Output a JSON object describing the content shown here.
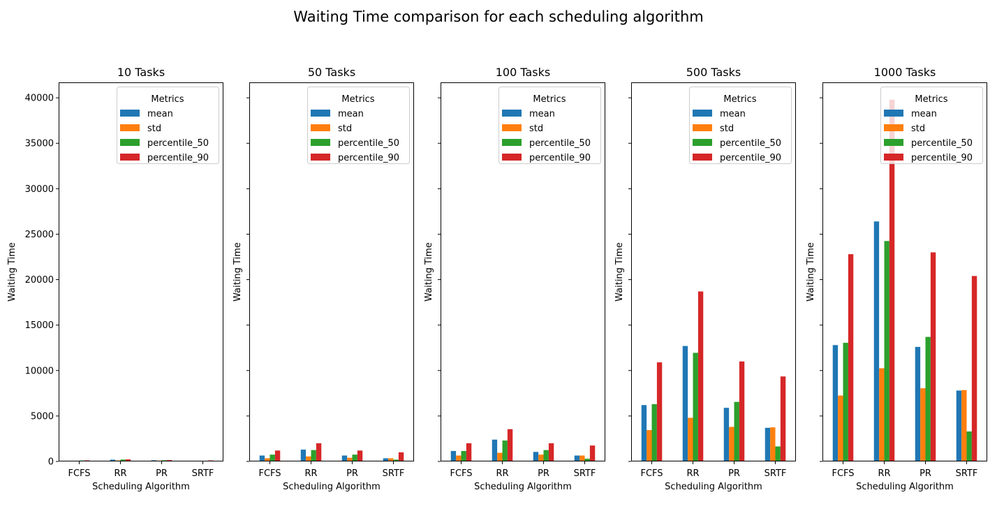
{
  "chart_data": {
    "type": "bar",
    "title": "Waiting Time comparison for each scheduling algorithm",
    "shared_y": true,
    "ylim": [
      0,
      41700
    ],
    "yticks": [
      0,
      5000,
      10000,
      15000,
      20000,
      25000,
      30000,
      35000,
      40000
    ],
    "ytick_labels": [
      "0",
      "5000",
      "10000",
      "15000",
      "20000",
      "25000",
      "30000",
      "35000",
      "40000"
    ],
    "xlabel": "Scheduling Algorithm",
    "ylabel": "Waiting Time",
    "categories": [
      "FCFS",
      "RR",
      "PR",
      "SRTF"
    ],
    "legend": {
      "title": "Metrics",
      "placement": "upper right",
      "entries": [
        "mean",
        "std",
        "percentile_50",
        "percentile_90"
      ]
    },
    "colors": [
      "#1f77b4",
      "#ff7f0e",
      "#2ca02c",
      "#d62728"
    ],
    "panels": [
      {
        "title": "10 Tasks",
        "series": [
          {
            "name": "mean",
            "values": [
              80,
              200,
              130,
              60
            ]
          },
          {
            "name": "std",
            "values": [
              60,
              110,
              90,
              50
            ]
          },
          {
            "name": "percentile_50",
            "values": [
              100,
              210,
              130,
              70
            ]
          },
          {
            "name": "percentile_90",
            "values": [
              120,
              230,
              150,
              110
            ]
          }
        ]
      },
      {
        "title": "50 Tasks",
        "series": [
          {
            "name": "mean",
            "values": [
              650,
              1300,
              650,
              350
            ]
          },
          {
            "name": "std",
            "values": [
              350,
              550,
              400,
              350
            ]
          },
          {
            "name": "percentile_50",
            "values": [
              750,
              1250,
              750,
              200
            ]
          },
          {
            "name": "percentile_90",
            "values": [
              1200,
              2000,
              1200,
              1000
            ]
          }
        ]
      },
      {
        "title": "100 Tasks",
        "series": [
          {
            "name": "mean",
            "values": [
              1150,
              2400,
              1050,
              650
            ]
          },
          {
            "name": "std",
            "values": [
              650,
              950,
              750,
              650
            ]
          },
          {
            "name": "percentile_50",
            "values": [
              1150,
              2300,
              1250,
              300
            ]
          },
          {
            "name": "percentile_90",
            "values": [
              2000,
              3550,
              2000,
              1750
            ]
          }
        ]
      },
      {
        "title": "500 Tasks",
        "series": [
          {
            "name": "mean",
            "values": [
              6200,
              12700,
              5900,
              3700
            ]
          },
          {
            "name": "std",
            "values": [
              3450,
              4800,
              3800,
              3750
            ]
          },
          {
            "name": "percentile_50",
            "values": [
              6300,
              11950,
              6550,
              1650
            ]
          },
          {
            "name": "percentile_90",
            "values": [
              10900,
              18700,
              11000,
              9350
            ]
          }
        ]
      },
      {
        "title": "1000 Tasks",
        "series": [
          {
            "name": "mean",
            "values": [
              12800,
              26400,
              12600,
              7800
            ]
          },
          {
            "name": "std",
            "values": [
              7250,
              10250,
              8050,
              7850
            ]
          },
          {
            "name": "percentile_50",
            "values": [
              13050,
              24250,
              13700,
              3300
            ]
          },
          {
            "name": "percentile_90",
            "values": [
              22800,
              39800,
              23000,
              20400
            ]
          }
        ]
      }
    ]
  }
}
